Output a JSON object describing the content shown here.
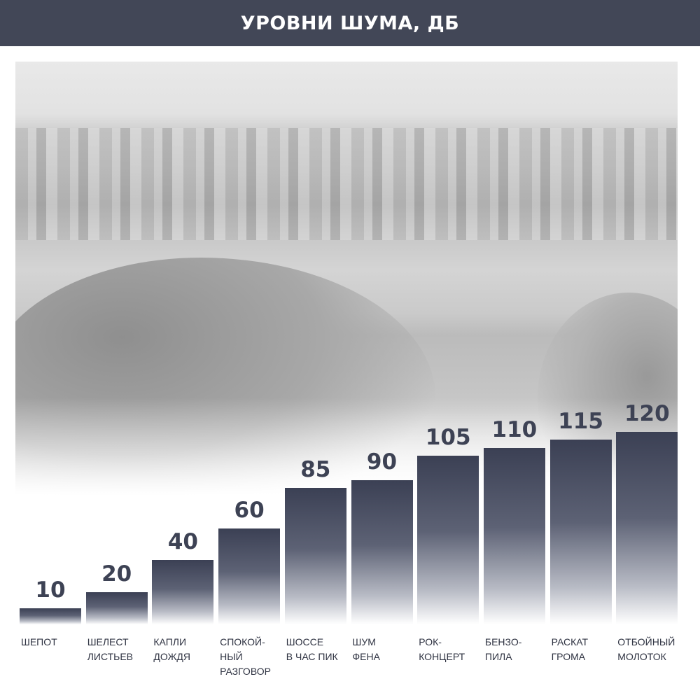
{
  "header": {
    "title": "УРОВНИ ШУМА, ДБ"
  },
  "colors": {
    "header_bg": "#424757",
    "bar": "#3b4054",
    "text": "#3d4254"
  },
  "chart_data": {
    "type": "bar",
    "title": "УРОВНИ ШУМА, ДБ",
    "categories": [
      "ШЕПОТ",
      "ШЕЛЕСТ\nЛИСТЬЕВ",
      "КАПЛИ\nДОЖДЯ",
      "СПОКОЙ-\nНЫЙ\nРАЗГОВОР",
      "ШОССЕ\nВ ЧАС ПИК",
      "ШУМ\nФЕНА",
      "РОК-\nКОНЦЕРТ",
      "БЕНЗО-\nПИЛА",
      "РАСКАТ\nГРОМА",
      "ОТБОЙНЫЙ\nМОЛОТОК"
    ],
    "values": [
      10,
      20,
      40,
      60,
      85,
      90,
      105,
      110,
      115,
      120
    ],
    "data_labels": [
      "10",
      "20",
      "40",
      "60",
      "85",
      "90",
      "105",
      "110",
      "115",
      "120"
    ],
    "xlabel": "",
    "ylabel": "",
    "ylim": [
      0,
      120
    ],
    "grid": false,
    "background": "grayscale city photo"
  }
}
